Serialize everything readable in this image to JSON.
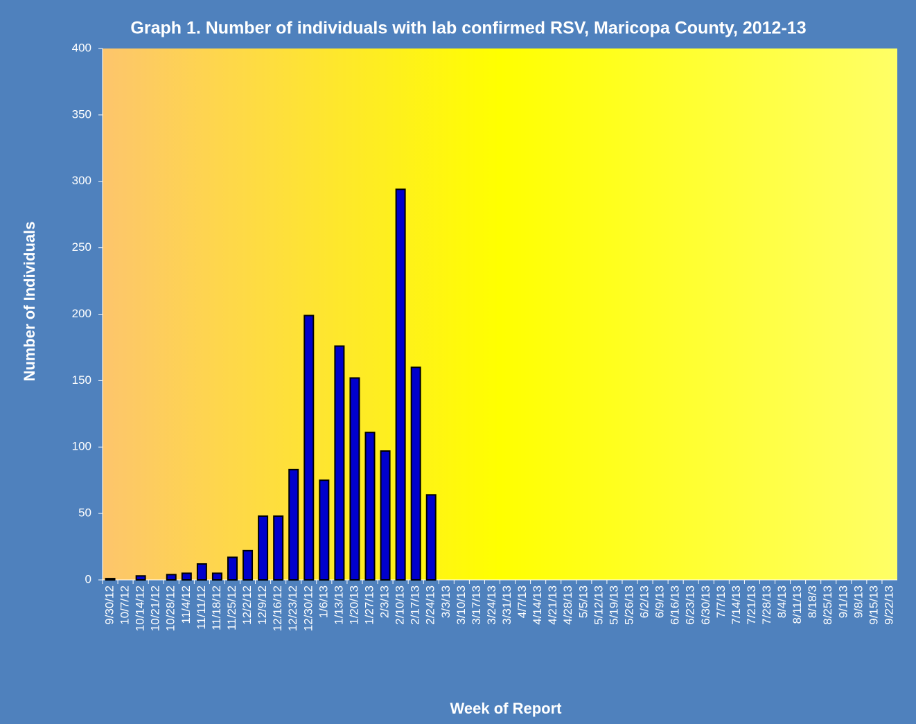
{
  "chart_data": {
    "type": "bar",
    "title": "Graph 1. Number of individuals with lab confirmed RSV, Maricopa County, 2012-13",
    "xlabel": "Week of Report",
    "ylabel": "Number of Individuals",
    "categories": [
      "9/30/12",
      "10/7/12",
      "10/14/12",
      "10/21/12",
      "10/28/12",
      "11/4/12",
      "11/11/12",
      "11/18/12",
      "11/25/12",
      "12/2/12",
      "12/9/12",
      "12/16/12",
      "12/23/12",
      "12/30/12",
      "1/6/13",
      "1/13/13",
      "1/20/13",
      "1/27/13",
      "2/3/13",
      "2/10/13",
      "2/17/13",
      "2/24/13",
      "3/3/13",
      "3/10/13",
      "3/17/13",
      "3/24/13",
      "3/31/13",
      "4/7/13",
      "4/14/13",
      "4/21/13",
      "4/28/13",
      "5/5/13",
      "5/12/13",
      "5/19/13",
      "5/26/13",
      "6/2/13",
      "6/9/13",
      "6/16/13",
      "6/23/13",
      "6/30/13",
      "7/7/13",
      "7/14/13",
      "7/21/13",
      "7/28/13",
      "8/4/13",
      "8/11/13",
      "8/18/3",
      "8/25/13",
      "9/1/13",
      "9/8/13",
      "9/15/13",
      "9/22/13"
    ],
    "values": [
      1,
      0,
      3,
      0,
      4,
      5,
      12,
      5,
      17,
      22,
      48,
      48,
      83,
      199,
      75,
      176,
      152,
      111,
      97,
      294,
      160,
      64,
      null,
      null,
      null,
      null,
      null,
      null,
      null,
      null,
      null,
      null,
      null,
      null,
      null,
      null,
      null,
      null,
      null,
      null,
      null,
      null,
      null,
      null,
      null,
      null,
      null,
      null,
      null,
      null,
      null,
      null
    ],
    "color": "#0000cc",
    "ylim": [
      0,
      400
    ],
    "yticks": [
      0,
      50,
      100,
      150,
      200,
      250,
      300,
      350,
      400
    ]
  }
}
